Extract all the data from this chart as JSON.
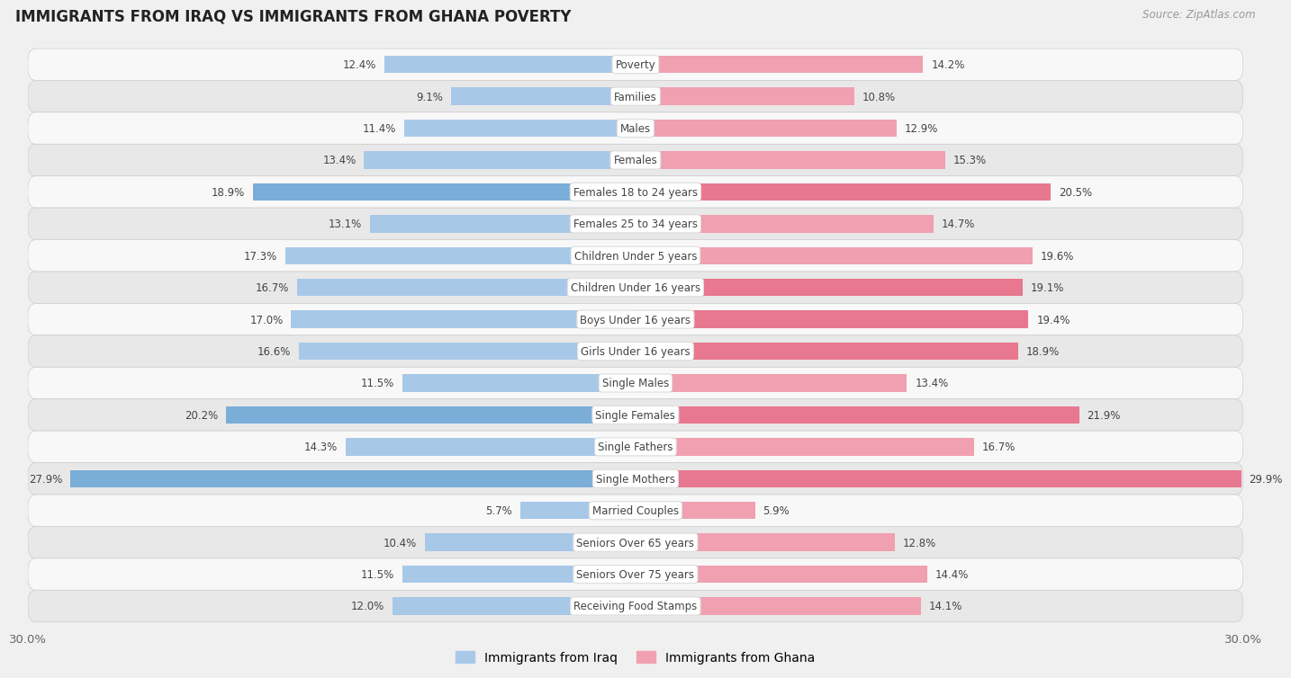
{
  "title": "IMMIGRANTS FROM IRAQ VS IMMIGRANTS FROM GHANA POVERTY",
  "source": "Source: ZipAtlas.com",
  "categories": [
    "Poverty",
    "Families",
    "Males",
    "Females",
    "Females 18 to 24 years",
    "Females 25 to 34 years",
    "Children Under 5 years",
    "Children Under 16 years",
    "Boys Under 16 years",
    "Girls Under 16 years",
    "Single Males",
    "Single Females",
    "Single Fathers",
    "Single Mothers",
    "Married Couples",
    "Seniors Over 65 years",
    "Seniors Over 75 years",
    "Receiving Food Stamps"
  ],
  "iraq_values": [
    12.4,
    9.1,
    11.4,
    13.4,
    18.9,
    13.1,
    17.3,
    16.7,
    17.0,
    16.6,
    11.5,
    20.2,
    14.3,
    27.9,
    5.7,
    10.4,
    11.5,
    12.0
  ],
  "ghana_values": [
    14.2,
    10.8,
    12.9,
    15.3,
    20.5,
    14.7,
    19.6,
    19.1,
    19.4,
    18.9,
    13.4,
    21.9,
    16.7,
    29.9,
    5.9,
    12.8,
    14.4,
    14.1
  ],
  "iraq_color": "#a8c8e8",
  "ghana_color": "#f0a0b0",
  "iraq_highlight_indices": [
    4,
    11,
    13
  ],
  "ghana_highlight_indices": [
    4,
    7,
    8,
    9,
    11,
    13
  ],
  "iraq_highlight_color": "#7aadd8",
  "ghana_highlight_color": "#e87890",
  "bar_height": 0.55,
  "xlim": 30.0,
  "bg_color": "#f0f0f0",
  "row_light_color": "#f8f8f8",
  "row_dark_color": "#e8e8e8",
  "label_bg_color": "#ffffff",
  "value_color": "#444444",
  "cat_color": "#444444",
  "legend_iraq": "Immigrants from Iraq",
  "legend_ghana": "Immigrants from Ghana",
  "legend_iraq_color": "#a8c8e8",
  "legend_ghana_color": "#f0a0b0",
  "tick_label_color": "#666666",
  "title_color": "#222222",
  "source_color": "#999999"
}
